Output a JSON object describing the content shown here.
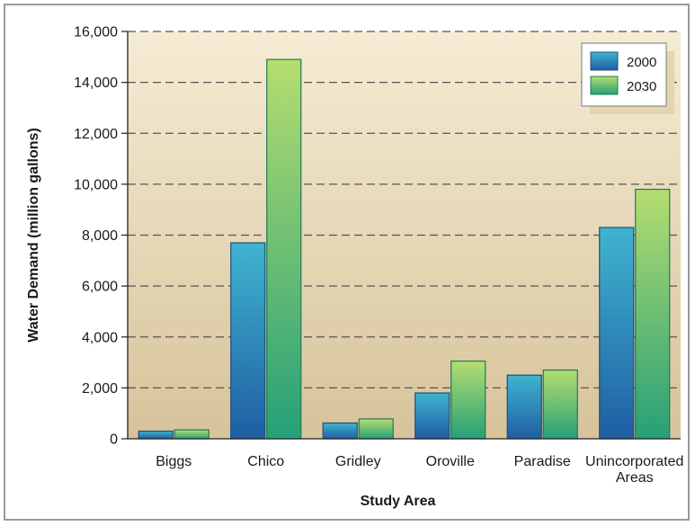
{
  "chart_data": {
    "type": "bar",
    "title": "",
    "xlabel": "Study Area",
    "ylabel": "Water Demand (million gallons)",
    "ylim": [
      0,
      16000
    ],
    "yticks": [
      0,
      2000,
      4000,
      6000,
      8000,
      10000,
      12000,
      14000,
      16000
    ],
    "ytick_labels": [
      "0",
      "2,000",
      "4,000",
      "6,000",
      "8,000",
      "10,000",
      "12,000",
      "14,000",
      "16,000"
    ],
    "categories": [
      "Biggs",
      "Chico",
      "Gridley",
      "Oroville",
      "Paradise",
      "Unincorporated Areas"
    ],
    "series": [
      {
        "name": "2000",
        "values": [
          300,
          7700,
          620,
          1800,
          2500,
          8300
        ]
      },
      {
        "name": "2030",
        "values": [
          350,
          14900,
          780,
          3050,
          2700,
          9800
        ]
      }
    ],
    "grid": "horizontal dashed",
    "legend_position": "top-right",
    "colors": {
      "plot_background_top": "#f5ecd4",
      "plot_background_bottom": "#d7c39a",
      "series_2000_top": "#3fb4cf",
      "series_2000_bottom": "#1f5ea3",
      "series_2030_top": "#b5dd70",
      "series_2030_bottom": "#25a078",
      "grid": "#555555"
    }
  }
}
